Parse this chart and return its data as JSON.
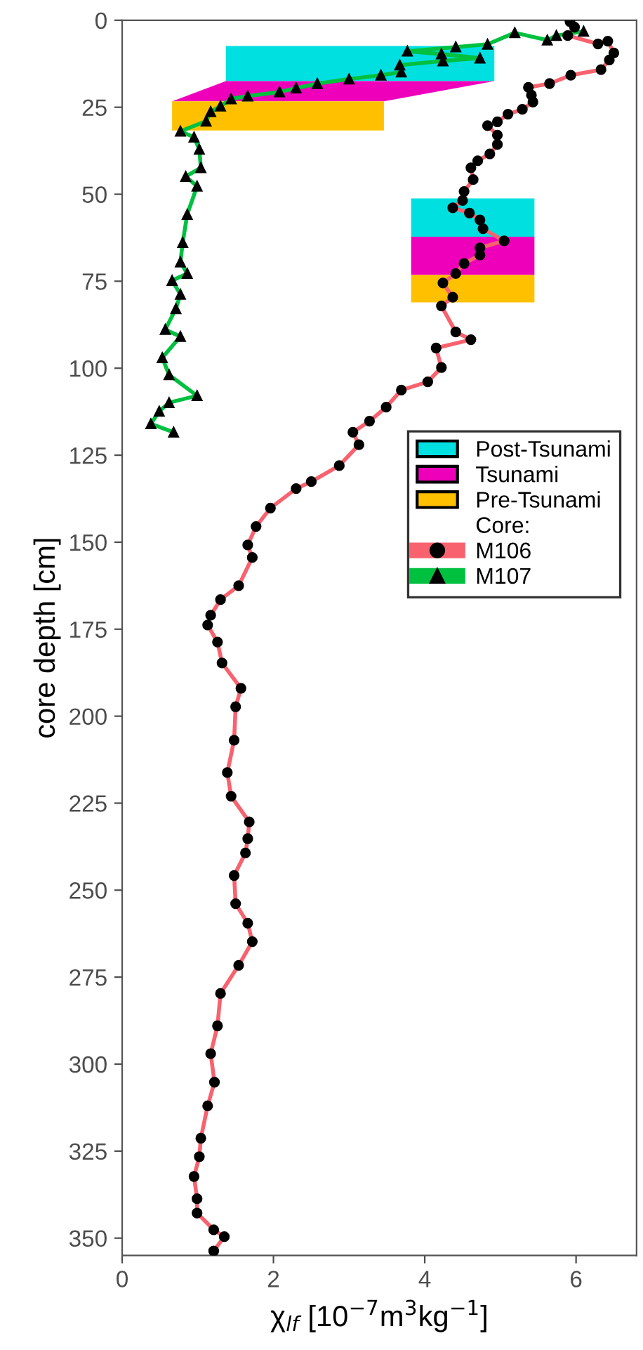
{
  "chart_data": {
    "type": "line",
    "xlabel": "χ$_{lf}$ [10$^{−7}$m$^{3}$kg$^{−1}$]",
    "ylabel": "core depth [cm]",
    "legend_title": "Core:",
    "xlim": [
      0,
      6.8
    ],
    "xticks": [
      0,
      2,
      4,
      6
    ],
    "ylim": [
      355,
      0
    ],
    "yticks": [
      0,
      25,
      50,
      75,
      100,
      125,
      150,
      175,
      200,
      225,
      250,
      275,
      300,
      325,
      350
    ],
    "grid": false,
    "legend": "right",
    "series": [
      {
        "name": "Post-Tsunami",
        "type": "area",
        "color": "#00e0e0",
        "x": [
          3.82,
          5.45,
          5.45,
          3.82
        ],
        "values": [
          51.2,
          51.2,
          62.2,
          62.2
        ]
      },
      {
        "name": "Tsunami",
        "type": "area",
        "color": "#ee00bb",
        "x": [
          3.82,
          5.45,
          5.45,
          3.82
        ],
        "values": [
          62.2,
          62.2,
          73.2,
          73.2
        ]
      },
      {
        "name": "Pre-Tsunami",
        "type": "area",
        "color": "#ffc000",
        "x": [
          3.82,
          5.45,
          5.45,
          3.82
        ],
        "values": [
          73.2,
          73.2,
          81.1,
          81.1
        ]
      },
      {
        "type": "area",
        "color": "#00e0e0",
        "x": [
          1.37,
          4.92,
          4.92,
          1.37
        ],
        "values": [
          7.4,
          7.4,
          17.5,
          17.5
        ]
      },
      {
        "type": "area",
        "color": "#ee00bb",
        "x": [
          1.37,
          4.92,
          3.46,
          0.66
        ],
        "values": [
          17.5,
          17.5,
          23.3,
          23.3
        ]
      },
      {
        "type": "area",
        "color": "#ffc000",
        "x": [
          0.66,
          3.46,
          3.46,
          0.66
        ],
        "values": [
          23.3,
          23.3,
          31.7,
          31.7
        ]
      },
      {
        "name": "M106",
        "color": "#f8626e",
        "marker": "circle",
        "x": [
          5.92,
          5.98,
          5.89,
          6.29,
          6.42,
          6.5,
          6.44,
          6.33,
          5.93,
          5.65,
          5.37,
          5.41,
          5.43,
          5.29,
          5.1,
          4.96,
          4.83,
          4.96,
          4.96,
          4.86,
          4.7,
          4.61,
          4.64,
          4.52,
          4.5,
          4.37,
          4.59,
          4.73,
          4.77,
          5.05,
          4.73,
          4.73,
          4.52,
          4.41,
          4.24,
          4.37,
          4.22,
          4.41,
          4.61,
          4.15,
          4.22,
          4.04,
          3.69,
          3.49,
          3.27,
          3.05,
          3.13,
          2.87,
          2.5,
          2.3,
          1.96,
          1.77,
          1.66,
          1.72,
          1.54,
          1.3,
          1.17,
          1.13,
          1.26,
          1.32,
          1.57,
          1.5,
          1.48,
          1.39,
          1.44,
          1.68,
          1.66,
          1.63,
          1.48,
          1.5,
          1.66,
          1.72,
          1.54,
          1.3,
          1.26,
          1.17,
          1.22,
          1.13,
          1.04,
          1.02,
          0.95,
          0.99,
          0.99,
          1.21,
          1.35,
          1.21
        ],
        "values": [
          0.4,
          2,
          4.4,
          6.8,
          6,
          9.4,
          11.4,
          14.2,
          15.8,
          18.2,
          19.3,
          21.5,
          23.5,
          25.6,
          27,
          29.2,
          30.3,
          33,
          35.7,
          38.4,
          40.4,
          42.4,
          45.8,
          49.2,
          51.8,
          53.9,
          55.4,
          57.4,
          59.9,
          63.4,
          65.4,
          67.5,
          69.9,
          72.8,
          75.5,
          79.6,
          82.1,
          89.6,
          91.8,
          94.2,
          99.8,
          103.9,
          106.3,
          111.2,
          115.2,
          118.4,
          122,
          128,
          132.6,
          134.6,
          140.2,
          145.5,
          150.8,
          154.4,
          162.5,
          166.5,
          171,
          173.8,
          178.7,
          184.7,
          192,
          197.3,
          206.9,
          216.2,
          223,
          230.4,
          235.2,
          239.3,
          245.8,
          253.9,
          259.5,
          264.8,
          271.6,
          279.7,
          289,
          297,
          305.2,
          312,
          321.3,
          326.6,
          332.3,
          338.7,
          342.8,
          347.6,
          349.6,
          353.7
        ]
      },
      {
        "name": "M107",
        "color": "#00c040",
        "marker": "triangle",
        "x": [
          6.1,
          5.74,
          5.62,
          5.19,
          4.83,
          4.41,
          3.77,
          4.22,
          4.73,
          4.24,
          3.67,
          3.69,
          3.42,
          3.0,
          2.58,
          2.3,
          2.08,
          1.66,
          1.44,
          1.3,
          1.17,
          1.11,
          0.77,
          0.95,
          1.02,
          1.04,
          0.84,
          0.99,
          0.86,
          0.8,
          0.77,
          0.86,
          0.66,
          0.77,
          0.71,
          0.57,
          0.77,
          0.53,
          0.62,
          0.99,
          0.62,
          0.49,
          0.38,
          0.68
        ],
        "values": [
          3.2,
          4.4,
          5.7,
          3.6,
          6.9,
          7.7,
          8.9,
          9.7,
          10.9,
          11.7,
          12.9,
          14.9,
          15.8,
          16.9,
          18.2,
          19.5,
          20.6,
          21.8,
          22.6,
          24.7,
          26.3,
          29,
          31.9,
          33.6,
          37.1,
          42.4,
          44.9,
          47.7,
          55.8,
          63.9,
          69.5,
          72.8,
          74.8,
          78.8,
          82.9,
          88.9,
          90.9,
          97,
          101.9,
          107.9,
          109.9,
          112.4,
          116,
          118.4
        ]
      }
    ]
  }
}
